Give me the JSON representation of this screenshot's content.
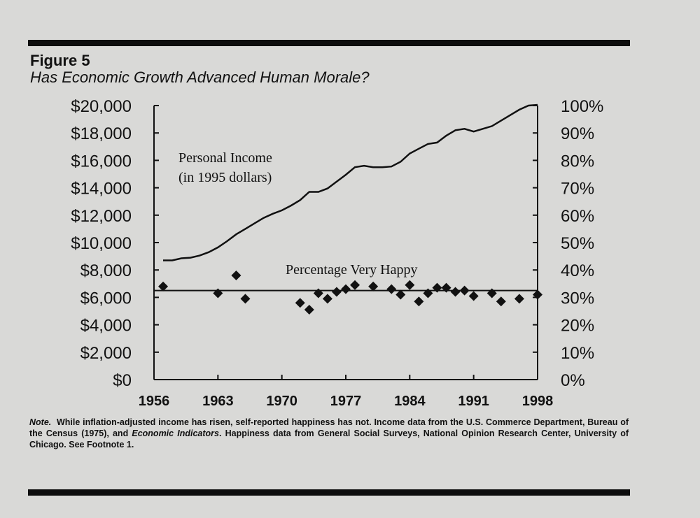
{
  "figure": {
    "label": "Figure 5",
    "title": "Has Economic Growth Advanced Human Morale?",
    "note_lead": "Note.",
    "note_1": "While inflation-adjusted income has risen, self-reported happiness has not. Income data from the U.S. Commerce Department, Bureau of the Census (1975), and ",
    "note_italic": "Economic Indicators",
    "note_2": ". Happiness data from General Social Surveys, National Opinion Research Center, University of Chicago. See Footnote 1."
  },
  "chart_data": {
    "type": "line",
    "x_range": [
      1956,
      1998
    ],
    "x_ticks": [
      1956,
      1963,
      1970,
      1977,
      1984,
      1991,
      1998
    ],
    "x_tick_labels": [
      "1956",
      "1963",
      "1970",
      "1977",
      "1984",
      "1991",
      "1998"
    ],
    "left_axis": {
      "ylim": [
        0,
        20000
      ],
      "ticks": [
        0,
        2000,
        4000,
        6000,
        8000,
        10000,
        12000,
        14000,
        16000,
        18000,
        20000
      ],
      "tick_labels": [
        "$0",
        "$2,000",
        "$4,000",
        "$6,000",
        "$8,000",
        "$10,000",
        "$12,000",
        "$14,000",
        "$16,000",
        "$18,000",
        "$20,000"
      ]
    },
    "right_axis": {
      "ylim": [
        0,
        100
      ],
      "ticks": [
        0,
        10,
        20,
        30,
        40,
        50,
        60,
        70,
        80,
        90,
        100
      ],
      "tick_labels": [
        "0%",
        "10%",
        "20%",
        "30%",
        "40%",
        "50%",
        "60%",
        "70%",
        "80%",
        "90%",
        "100%"
      ]
    },
    "series": [
      {
        "name_line1": "Personal Income",
        "name_line2": "(in 1995 dollars)",
        "axis": "left",
        "style": "line",
        "x": [
          1957,
          1958,
          1959,
          1960,
          1961,
          1962,
          1963,
          1964,
          1965,
          1966,
          1967,
          1968,
          1969,
          1970,
          1971,
          1972,
          1973,
          1974,
          1975,
          1976,
          1977,
          1978,
          1979,
          1980,
          1981,
          1982,
          1983,
          1984,
          1985,
          1986,
          1987,
          1988,
          1989,
          1990,
          1991,
          1992,
          1993,
          1994,
          1995,
          1996,
          1997,
          1998
        ],
        "values": [
          8700,
          8700,
          8850,
          8900,
          9050,
          9300,
          9650,
          10100,
          10600,
          11000,
          11400,
          11800,
          12100,
          12350,
          12700,
          13100,
          13700,
          13700,
          13950,
          14450,
          14950,
          15500,
          15600,
          15500,
          15500,
          15550,
          15900,
          16500,
          16850,
          17200,
          17300,
          17800,
          18200,
          18300,
          18100,
          18300,
          18500,
          18900,
          19300,
          19700,
          20000,
          20050
        ]
      },
      {
        "name": "Percentage Very Happy",
        "axis": "right",
        "style": "scatter",
        "x": [
          1957,
          1963,
          1965,
          1966,
          1972,
          1973,
          1974,
          1975,
          1976,
          1977,
          1978,
          1980,
          1982,
          1983,
          1984,
          1985,
          1986,
          1987,
          1988,
          1989,
          1990,
          1991,
          1993,
          1994,
          1996,
          1998
        ],
        "values": [
          34,
          31.5,
          38,
          29.5,
          28,
          25.5,
          31.5,
          29.5,
          32,
          33,
          34.5,
          34,
          33,
          31,
          34.5,
          28.5,
          31.5,
          33.5,
          33.5,
          32,
          32.5,
          30.5,
          31.5,
          28.5,
          29.5,
          31
        ]
      }
    ],
    "reference_line": {
      "axis": "right",
      "value": 32.5
    }
  }
}
